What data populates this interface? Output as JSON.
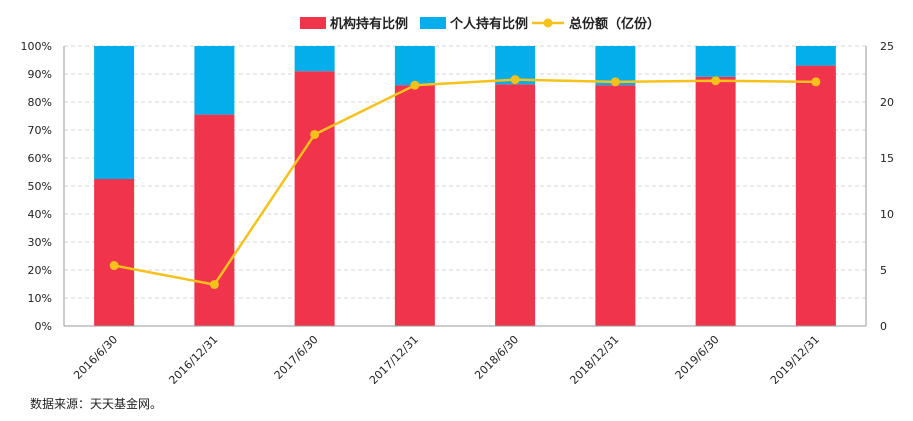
{
  "chart_data": {
    "type": "bar",
    "stacked": true,
    "categories": [
      "2016/6/30",
      "2016/12/31",
      "2017/6/30",
      "2017/12/31",
      "2018/6/30",
      "2018/12/31",
      "2019/6/30",
      "2019/12/31"
    ],
    "series": [
      {
        "name": "机构持有比例",
        "type": "bar",
        "axis": "left",
        "color": "#f0344c",
        "values": [
          52.5,
          75.5,
          91,
          86,
          86.3,
          86,
          89,
          93
        ]
      },
      {
        "name": "个人持有比例",
        "type": "bar",
        "axis": "left",
        "color": "#04aeea",
        "values": [
          47.5,
          24.5,
          9,
          14,
          13.7,
          14,
          11,
          7
        ]
      },
      {
        "name": "总份额（亿份）",
        "type": "line",
        "axis": "right",
        "color": "#f5c11a",
        "values": [
          5.4,
          3.7,
          17.1,
          21.5,
          22.0,
          21.8,
          21.9,
          21.8
        ]
      }
    ],
    "left_axis": {
      "min": 0,
      "max": 100,
      "ticks": [
        "0%",
        "10%",
        "20%",
        "30%",
        "40%",
        "50%",
        "60%",
        "70%",
        "80%",
        "90%",
        "100%"
      ]
    },
    "right_axis": {
      "min": 0,
      "max": 25,
      "ticks": [
        "0",
        "5",
        "10",
        "15",
        "20",
        "25"
      ]
    },
    "legend_position": "top",
    "grid": true
  },
  "source_text": "数据来源：天天基金网。"
}
